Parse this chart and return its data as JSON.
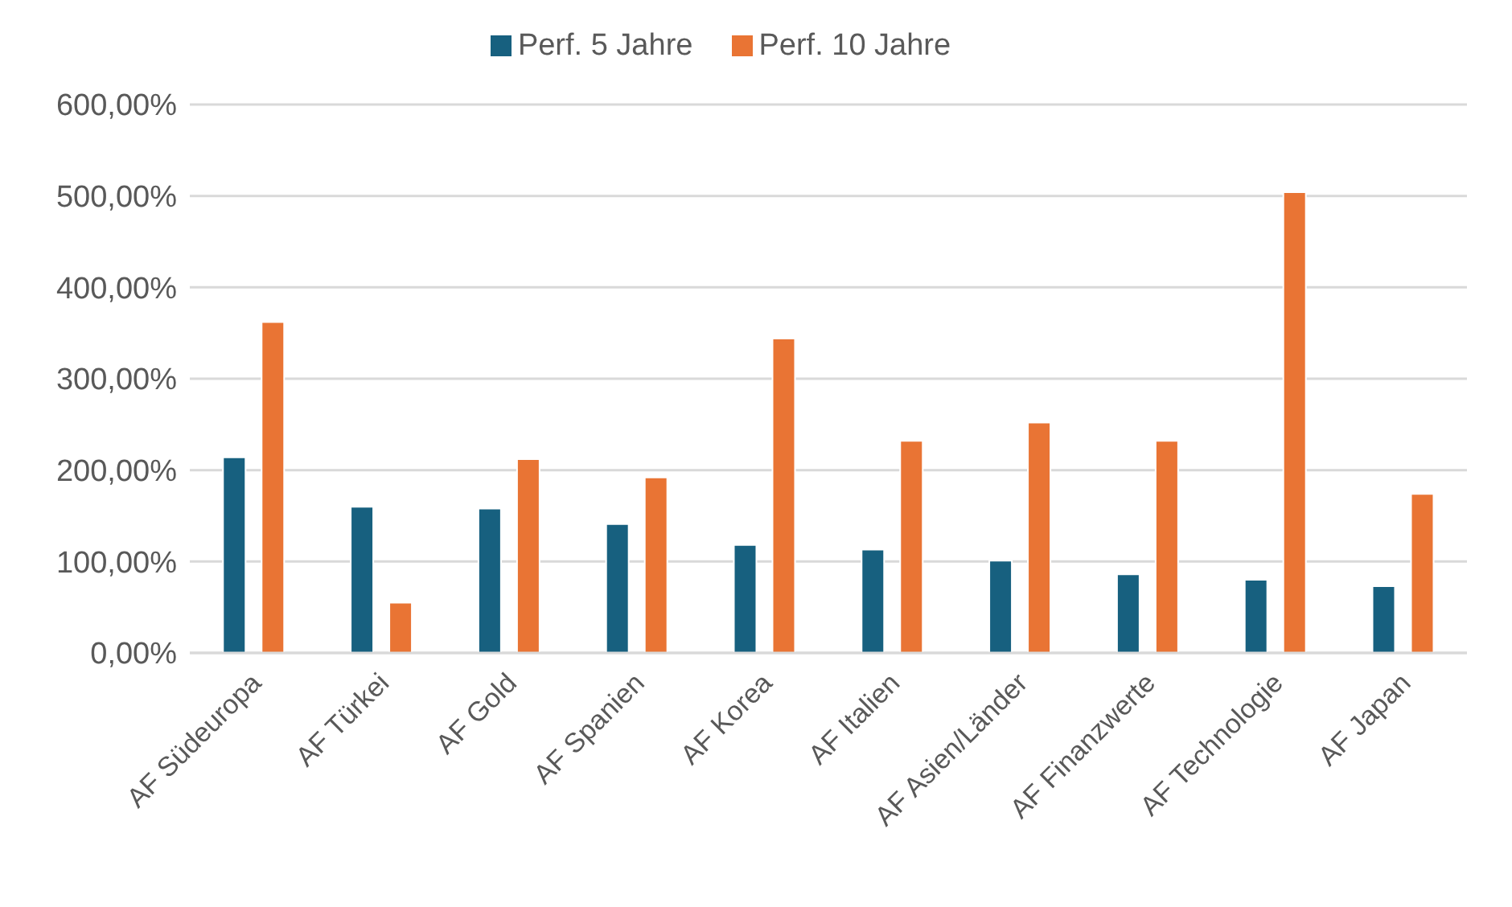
{
  "chart_data": {
    "type": "bar",
    "categories": [
      "AF Südeuropa",
      "AF Türkei",
      "AF Gold",
      "AF Spanien",
      "AF Korea",
      "AF Italien",
      "AF Asien/Länder",
      "AF Finanzwerte",
      "AF Technologie",
      "AF Japan"
    ],
    "series": [
      {
        "name": "Perf. 5 Jahre",
        "color": "#17607f",
        "values": [
          214,
          160,
          158,
          141,
          118,
          113,
          101,
          86,
          80,
          73
        ]
      },
      {
        "name": "Perf. 10 Jahre",
        "color": "#e97434",
        "values": [
          362,
          55,
          212,
          192,
          344,
          232,
          252,
          232,
          504,
          174
        ]
      }
    ],
    "ylim": [
      0,
      600
    ],
    "yticks": [
      {
        "value": 0,
        "label": "0,00%"
      },
      {
        "value": 100,
        "label": "100,00%"
      },
      {
        "value": 200,
        "label": "200,00%"
      },
      {
        "value": 300,
        "label": "300,00%"
      },
      {
        "value": 400,
        "label": "400,00%"
      },
      {
        "value": 500,
        "label": "500,00%"
      },
      {
        "value": 600,
        "label": "600,00%"
      }
    ],
    "grid": "y",
    "legend": "top"
  }
}
